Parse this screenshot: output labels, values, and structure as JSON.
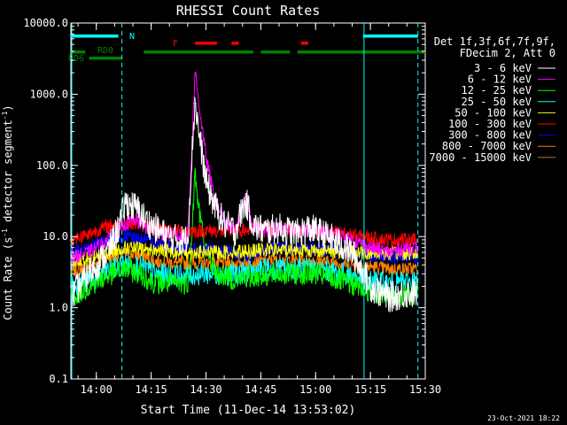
{
  "chart_data": {
    "type": "line",
    "title": "RHESSI Count Rates",
    "xlabel": "Start Time (11-Dec-14 13:53:02)",
    "ylabel": "Count Rate (s",
    "ylabel_sup": "-1",
    "ylabel_tail": " detector segment",
    "ylabel_sup2": "-1",
    "ylabel_end": ")",
    "yscale": "log",
    "xlim": [
      "13:53:02",
      "15:30:00"
    ],
    "ylim": [
      0.1,
      10000
    ],
    "x_ticks": [
      "14:00",
      "14:15",
      "14:30",
      "14:45",
      "15:00",
      "15:15",
      "15:30"
    ],
    "y_ticks": [
      "0.1",
      "1.0",
      "10.0",
      "100.0",
      "1000.0",
      "10000.0"
    ],
    "legend_header": [
      "Det 1f,3f,6f,7f,9f,",
      "FDecim 2, Att 0"
    ],
    "legend_position": "right",
    "series": [
      {
        "name": "3 - 6 keV",
        "color": "#ffffff",
        "x": [
          "13:53",
          "13:58",
          "14:03",
          "14:06",
          "14:08",
          "14:11",
          "14:14",
          "14:18",
          "14:22",
          "14:25",
          "14:26",
          "14:27",
          "14:28",
          "14:30",
          "14:32",
          "14:35",
          "14:38",
          "14:40",
          "14:41",
          "14:43",
          "14:46",
          "14:50",
          "14:55",
          "14:58",
          "15:00",
          "15:05",
          "15:10",
          "15:15",
          "15:20",
          "15:25",
          "15:28"
        ],
        "values": [
          1.4,
          3.0,
          6.0,
          13,
          30,
          25,
          16,
          11,
          9,
          9,
          100,
          850,
          300,
          60,
          30,
          15,
          12,
          25,
          30,
          14,
          12,
          13,
          11,
          13,
          12,
          9,
          6,
          2.0,
          1.4,
          1.6,
          1.6
        ]
      },
      {
        "name": "6 - 12 keV",
        "color": "#ff00ff",
        "x": [
          "13:53",
          "13:58",
          "14:03",
          "14:08",
          "14:11",
          "14:14",
          "14:18",
          "14:22",
          "14:25",
          "14:26",
          "14:27",
          "14:28",
          "14:30",
          "14:32",
          "14:35",
          "14:38",
          "14:40",
          "14:41",
          "14:43",
          "14:46",
          "14:50",
          "14:55",
          "15:00",
          "15:05",
          "15:10",
          "15:15",
          "15:20",
          "15:25",
          "15:28"
        ],
        "values": [
          5,
          6,
          9,
          15,
          17,
          13,
          11,
          10,
          10,
          120,
          2200,
          800,
          130,
          40,
          16,
          12,
          25,
          35,
          14,
          12,
          13,
          12,
          12,
          11,
          9,
          7,
          6,
          7,
          7
        ]
      },
      {
        "name": "12 - 25 keV",
        "color": "#00ff00",
        "x": [
          "13:53",
          "13:58",
          "14:03",
          "14:08",
          "14:12",
          "14:16",
          "14:22",
          "14:25",
          "14:26",
          "14:27",
          "14:28",
          "14:30",
          "14:33",
          "14:38",
          "14:45",
          "14:52",
          "15:00",
          "15:08",
          "15:15",
          "15:20",
          "15:25",
          "15:28"
        ],
        "values": [
          1.4,
          2.0,
          2.8,
          3.5,
          3.0,
          2.2,
          2.2,
          2.2,
          8,
          80,
          25,
          6,
          3,
          2.5,
          2.8,
          3.0,
          3.0,
          2.3,
          1.7,
          1.4,
          1.5,
          1.6
        ]
      },
      {
        "name": "25 - 50 keV",
        "color": "#00ffff",
        "x": [
          "13:53",
          "13:58",
          "14:03",
          "14:08",
          "14:12",
          "14:16",
          "14:22",
          "14:30",
          "14:38",
          "14:45",
          "14:52",
          "15:00",
          "15:08",
          "15:15",
          "15:20",
          "15:25",
          "15:28"
        ],
        "values": [
          2.0,
          2.4,
          3.3,
          4.2,
          3.8,
          3.0,
          2.8,
          3.0,
          3.0,
          3.4,
          3.6,
          3.5,
          3.0,
          2.4,
          2.2,
          2.3,
          2.4
        ]
      },
      {
        "name": "50 - 100 keV",
        "color": "#ffff00",
        "x": [
          "13:53",
          "13:58",
          "14:03",
          "14:08",
          "14:15",
          "14:25",
          "14:35",
          "14:45",
          "14:55",
          "15:05",
          "15:15",
          "15:28"
        ],
        "values": [
          4.5,
          5,
          6,
          7,
          6.5,
          6,
          6,
          6.5,
          6.5,
          6.2,
          5.8,
          5.8
        ]
      },
      {
        "name": "100 - 300 keV",
        "color": "#ff0000",
        "x": [
          "13:53",
          "13:58",
          "14:03",
          "14:08",
          "14:12",
          "14:16",
          "14:22",
          "14:30",
          "14:38",
          "14:45",
          "14:52",
          "15:00",
          "15:08",
          "15:15",
          "15:20",
          "15:28"
        ],
        "values": [
          9,
          11,
          14,
          16,
          15,
          13,
          12,
          12,
          12,
          12.5,
          13,
          12,
          11,
          9.5,
          9,
          9
        ]
      },
      {
        "name": "300 - 800 keV",
        "color": "#0000ff",
        "x": [
          "13:53",
          "13:58",
          "14:03",
          "14:08",
          "14:12",
          "14:16",
          "14:22",
          "14:30",
          "14:38",
          "14:42",
          "14:45",
          "14:52",
          "15:00",
          "15:08",
          "15:15",
          "15:20",
          "15:28"
        ],
        "values": [
          6,
          7,
          9,
          10,
          9.5,
          8,
          7,
          6.5,
          6,
          5.2,
          6.5,
          7,
          6.8,
          6,
          5.5,
          5.2,
          5.2
        ]
      },
      {
        "name": "800 - 7000 keV",
        "color": "#ff8000",
        "x": [
          "13:53",
          "13:58",
          "14:03",
          "14:08",
          "14:12",
          "14:16",
          "14:22",
          "14:30",
          "14:38",
          "14:45",
          "14:52",
          "15:00",
          "15:08",
          "15:15",
          "15:20",
          "15:28"
        ],
        "values": [
          3.2,
          3.8,
          5,
          5.8,
          5.5,
          4.5,
          4.2,
          4.2,
          4.2,
          4.5,
          4.7,
          4.6,
          4.2,
          3.8,
          3.5,
          3.5
        ]
      },
      {
        "name": "7000 - 15000 keV",
        "color": "#aa7a30",
        "x": [],
        "values": []
      }
    ],
    "annotations": {
      "N_label": "N",
      "F_label": "F",
      "RD0_label": "RD0",
      "RD6_label": "RD6",
      "night_bars": [
        [
          "13:53:02",
          "14:06"
        ],
        [
          "15:13",
          "15:28"
        ]
      ],
      "flare_bars": [
        [
          "14:27",
          "14:33"
        ],
        [
          "14:37",
          "14:39"
        ],
        [
          "14:56",
          "14:58"
        ]
      ],
      "decim_bars": [
        [
          "13:53:02",
          "13:57"
        ],
        [
          "14:13",
          "14:43"
        ],
        [
          "14:45",
          "14:53"
        ],
        [
          "14:55",
          "15:30"
        ]
      ],
      "rd6_bar": [
        [
          "13:58",
          "14:07"
        ]
      ],
      "cyan_solid_vlines": [
        "13:53:02",
        "15:13"
      ],
      "cyan_dashed_vlines": [
        "14:07",
        "15:28"
      ]
    }
  },
  "timestamp": "23-Oct-2021 18:22"
}
